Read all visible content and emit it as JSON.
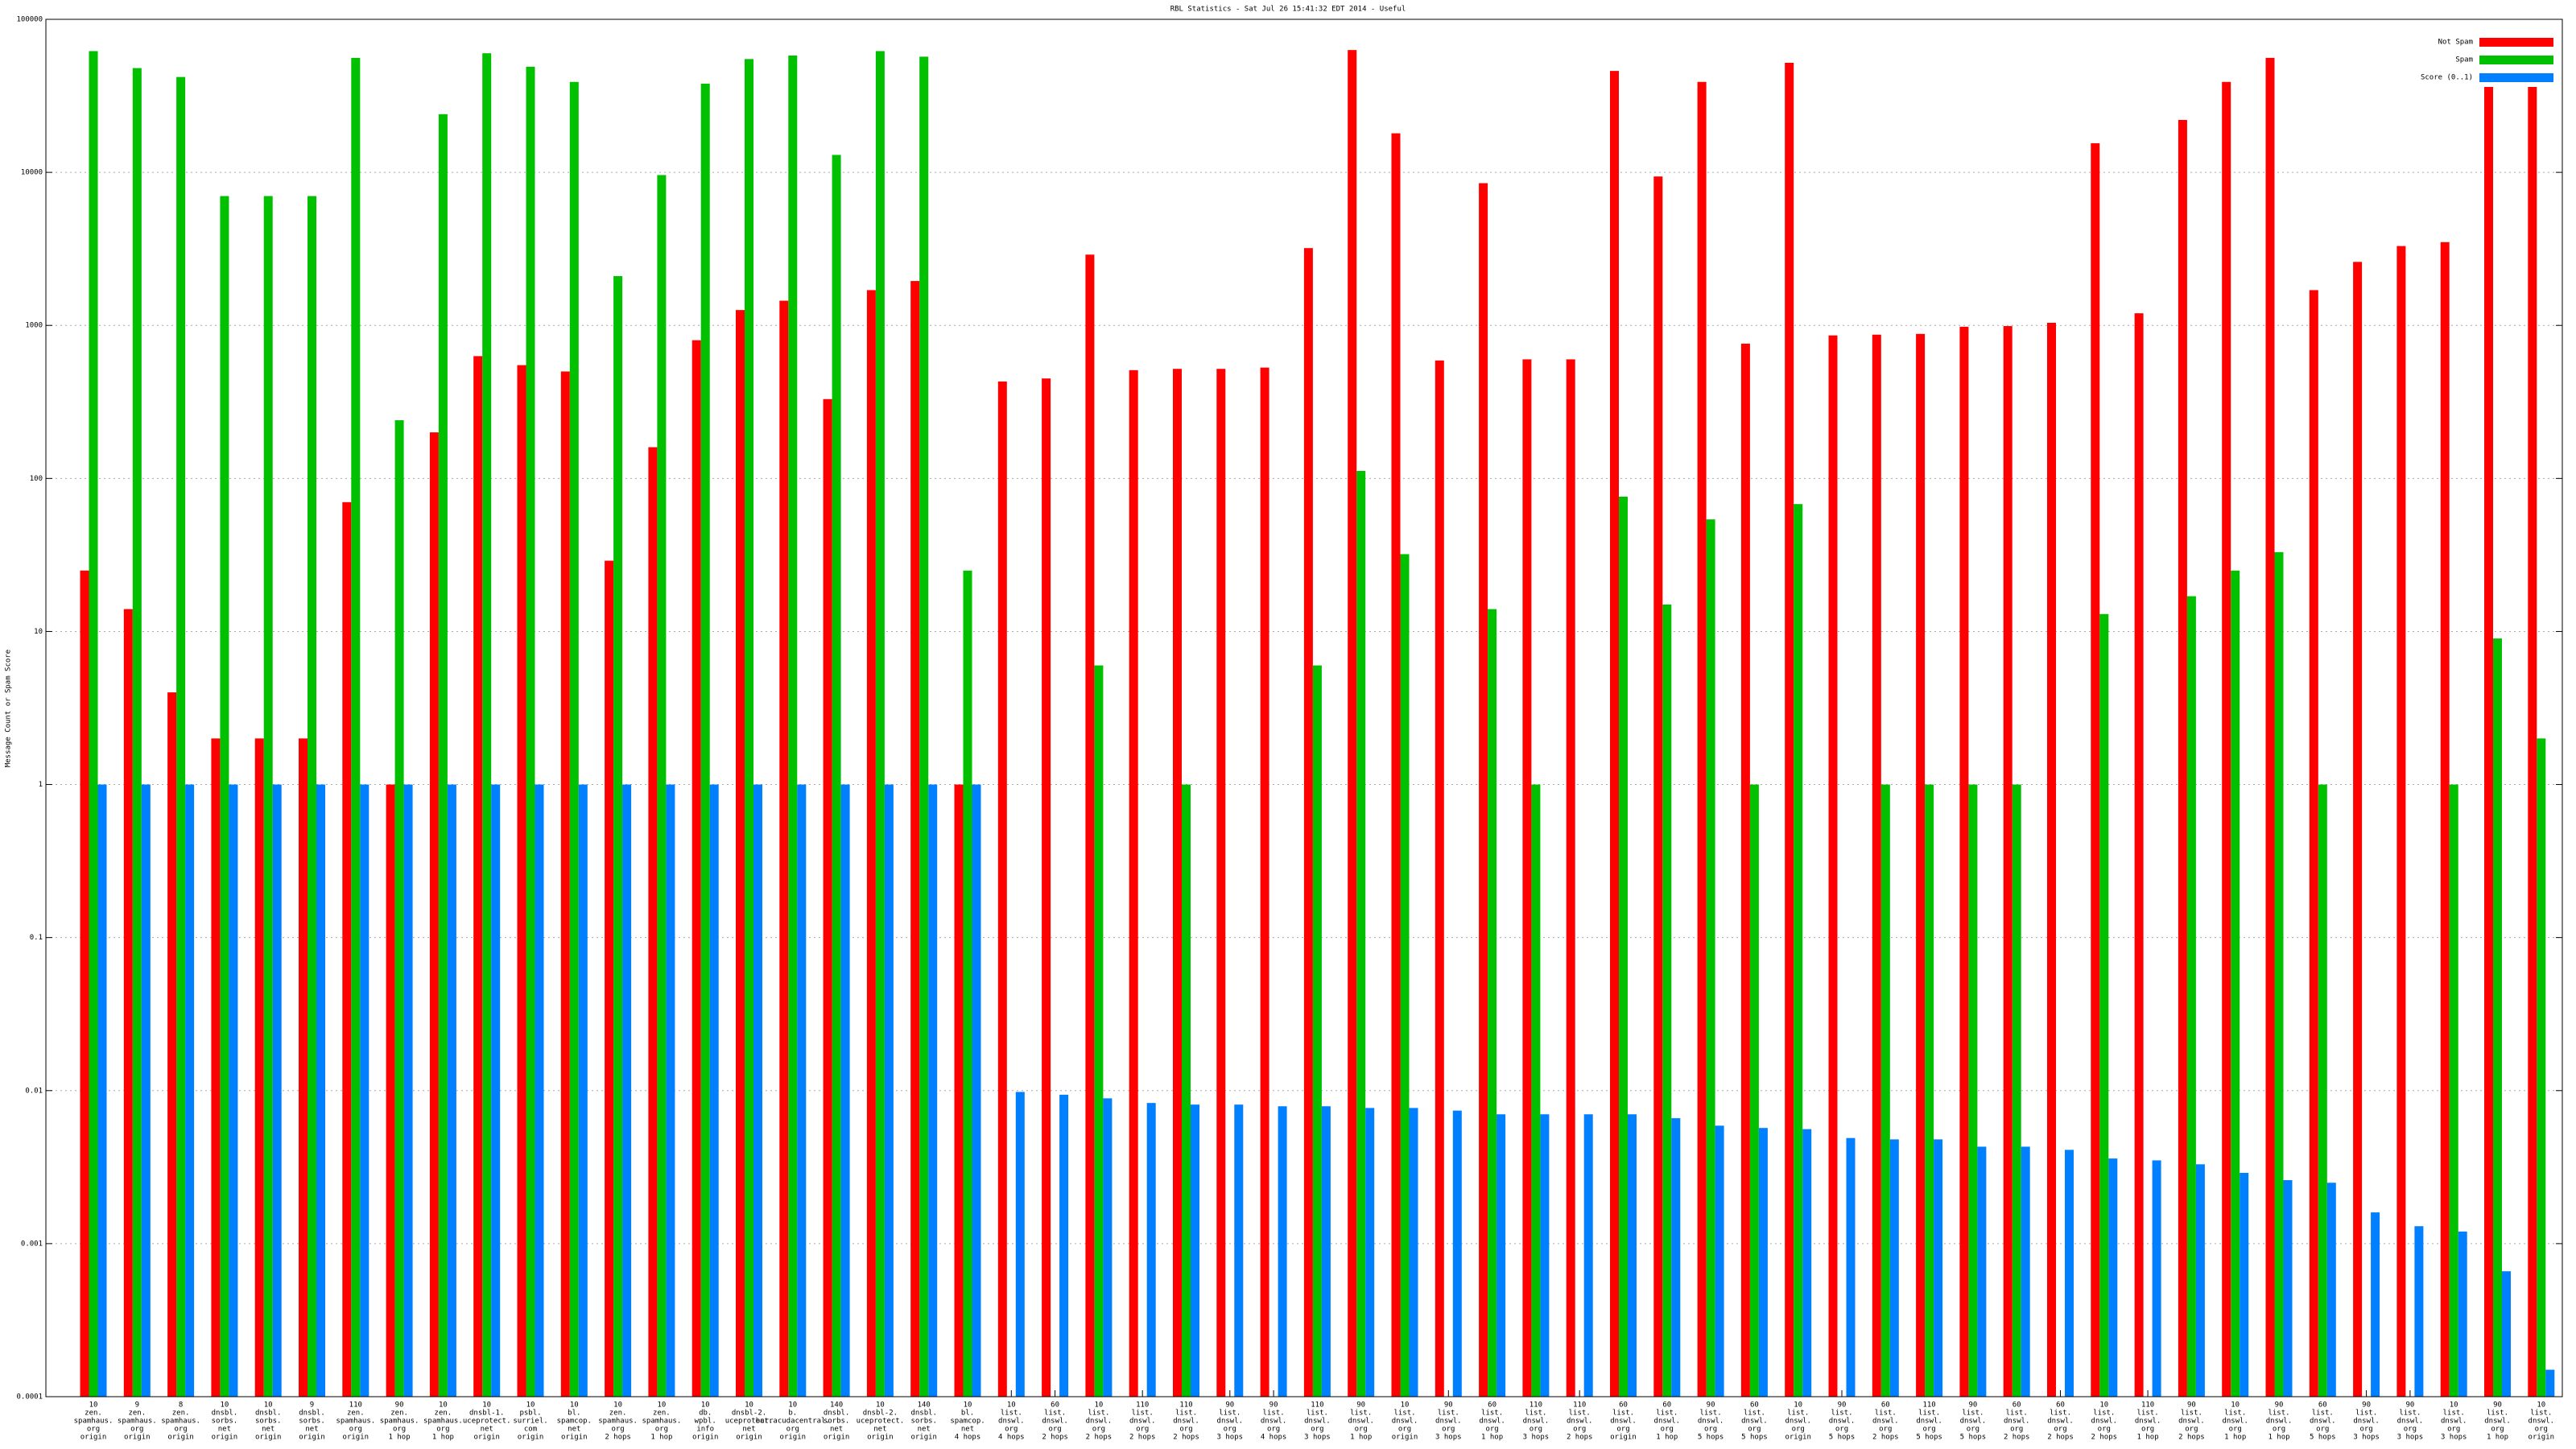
{
  "chart_data": {
    "type": "bar",
    "title": "RBL Statistics - Sat Jul 26 15:41:32 EDT 2014 - Useful",
    "ylabel": "Message Count or Spam Score",
    "log_y": true,
    "grid": true,
    "legend": "upper right",
    "ylim": [
      0.0001,
      100000
    ],
    "yticks": [
      0.0001,
      0.001,
      0.01,
      0.1,
      1,
      10,
      100,
      1000,
      10000,
      100000
    ],
    "categories": [
      [
        "10",
        "zen.",
        "spamhaus.",
        "org",
        "origin"
      ],
      [
        "9",
        "zen.",
        "spamhaus.",
        "org",
        "origin"
      ],
      [
        "8",
        "zen.",
        "spamhaus.",
        "org",
        "origin"
      ],
      [
        "10",
        "dnsbl.",
        "sorbs.",
        "net",
        "origin"
      ],
      [
        "10",
        "dnsbl.",
        "sorbs.",
        "net",
        "origin"
      ],
      [
        "9",
        "dnsbl.",
        "sorbs.",
        "net",
        "origin"
      ],
      [
        "110",
        "zen.",
        "spamhaus.",
        "org",
        "origin"
      ],
      [
        "90",
        "zen.",
        "spamhaus.",
        "org",
        "1 hop"
      ],
      [
        "10",
        "zen.",
        "spamhaus.",
        "org",
        "1 hop"
      ],
      [
        "10",
        "dnsbl-1.",
        "uceprotect.",
        "net",
        "origin"
      ],
      [
        "10",
        "psbl.",
        "surriel.",
        "com",
        "origin"
      ],
      [
        "10",
        "bl.",
        "spamcop.",
        "net",
        "origin"
      ],
      [
        "10",
        "zen.",
        "spamhaus.",
        "org",
        "2 hops"
      ],
      [
        "10",
        "zen.",
        "spamhaus.",
        "org",
        "1 hop"
      ],
      [
        "10",
        "db.",
        "wpbl.",
        "info",
        "origin"
      ],
      [
        "10",
        "dnsbl-2.",
        "uceprotect.",
        "net",
        "origin"
      ],
      [
        "10",
        "b.",
        "barracudacentral.",
        "org",
        "origin"
      ],
      [
        "140",
        "dnsbl.",
        "sorbs.",
        "net",
        "origin"
      ],
      [
        "10",
        "dnsbl-2.",
        "uceprotect.",
        "net",
        "origin"
      ],
      [
        "140",
        "dnsbl.",
        "sorbs.",
        "net",
        "origin"
      ],
      [
        "10",
        "bl.",
        "spamcop.",
        "net",
        "4 hops"
      ],
      [
        "10",
        "list.",
        "dnswl.",
        "org",
        "4 hops"
      ],
      [
        "60",
        "list.",
        "dnswl.",
        "org",
        "2 hops"
      ],
      [
        "10",
        "list.",
        "dnswl.",
        "org",
        "2 hops"
      ],
      [
        "110",
        "list.",
        "dnswl.",
        "org",
        "2 hops"
      ],
      [
        "110",
        "list.",
        "dnswl.",
        "org",
        "2 hops"
      ],
      [
        "90",
        "list.",
        "dnswl.",
        "org",
        "3 hops"
      ],
      [
        "90",
        "list.",
        "dnswl.",
        "org",
        "4 hops"
      ],
      [
        "110",
        "list.",
        "dnswl.",
        "org",
        "3 hops"
      ],
      [
        "90",
        "list.",
        "dnswl.",
        "org",
        "1 hop"
      ],
      [
        "10",
        "list.",
        "dnswl.",
        "org",
        "origin"
      ],
      [
        "90",
        "list.",
        "dnswl.",
        "org",
        "3 hops"
      ],
      [
        "60",
        "list.",
        "dnswl.",
        "org",
        "1 hop"
      ],
      [
        "110",
        "list.",
        "dnswl.",
        "org",
        "3 hops"
      ],
      [
        "110",
        "list.",
        "dnswl.",
        "org",
        "2 hops"
      ],
      [
        "60",
        "list.",
        "dnswl.",
        "org",
        "origin"
      ],
      [
        "60",
        "list.",
        "dnswl.",
        "org",
        "1 hop"
      ],
      [
        "90",
        "list.",
        "dnswl.",
        "org",
        "5 hops"
      ],
      [
        "60",
        "list.",
        "dnswl.",
        "org",
        "5 hops"
      ],
      [
        "10",
        "list.",
        "dnswl.",
        "org",
        "origin"
      ],
      [
        "90",
        "list.",
        "dnswl.",
        "org",
        "5 hops"
      ],
      [
        "60",
        "list.",
        "dnswl.",
        "org",
        "2 hops"
      ],
      [
        "110",
        "list.",
        "dnswl.",
        "org",
        "5 hops"
      ],
      [
        "90",
        "list.",
        "dnswl.",
        "org",
        "5 hops"
      ],
      [
        "60",
        "list.",
        "dnswl.",
        "org",
        "2 hops"
      ],
      [
        "60",
        "list.",
        "dnswl.",
        "org",
        "2 hops"
      ],
      [
        "10",
        "list.",
        "dnswl.",
        "org",
        "2 hops"
      ],
      [
        "110",
        "list.",
        "dnswl.",
        "org",
        "1 hop"
      ],
      [
        "90",
        "list.",
        "dnswl.",
        "org",
        "2 hops"
      ],
      [
        "10",
        "list.",
        "dnswl.",
        "org",
        "1 hop"
      ],
      [
        "90",
        "list.",
        "dnswl.",
        "org",
        "1 hop"
      ],
      [
        "60",
        "list.",
        "dnswl.",
        "org",
        "5 hops"
      ],
      [
        "90",
        "list.",
        "dnswl.",
        "org",
        "3 hops"
      ],
      [
        "90",
        "list.",
        "dnswl.",
        "org",
        "3 hops"
      ],
      [
        "10",
        "list.",
        "dnswl.",
        "org",
        "3 hops"
      ],
      [
        "90",
        "list.",
        "dnswl.",
        "org",
        "1 hop"
      ],
      [
        "10",
        "list.",
        "dnswl.",
        "org",
        "origin"
      ]
    ],
    "series": [
      {
        "name": "Not Spam",
        "color": "#ff0000",
        "values": [
          25,
          14,
          4,
          2,
          2,
          2,
          70,
          1,
          200,
          630,
          550,
          500,
          29,
          160,
          800,
          1260,
          1450,
          330,
          1700,
          1950,
          1,
          430,
          450,
          2900,
          510,
          520,
          520,
          530,
          3200,
          63000,
          18000,
          590,
          8500,
          600,
          600,
          46000,
          9400,
          39000,
          760,
          52000,
          860,
          870,
          880,
          980,
          990,
          1040,
          15500,
          1200,
          22000,
          39000,
          56000,
          1700,
          2600,
          3300,
          3500,
          60000,
          60000
        ]
      },
      {
        "name": "Spam",
        "color": "#00c000",
        "values": [
          62000,
          48000,
          42000,
          7000,
          7000,
          7000,
          56000,
          240,
          24000,
          60000,
          49000,
          39000,
          2100,
          9600,
          38000,
          55000,
          58000,
          13000,
          62000,
          57000,
          25,
          null,
          null,
          6,
          null,
          1,
          null,
          null,
          6,
          112,
          32,
          null,
          14,
          1,
          null,
          76,
          15,
          54,
          1,
          68,
          null,
          1,
          1,
          1,
          1,
          null,
          13,
          null,
          17,
          25,
          33,
          1,
          null,
          null,
          1,
          9,
          2
        ]
      },
      {
        "name": "Score (0..1)",
        "color": "#0080ff",
        "values": [
          1,
          1,
          1,
          1,
          1,
          1,
          1,
          1,
          1,
          1,
          1,
          1,
          1,
          1,
          1,
          1,
          1,
          1,
          1,
          1,
          1,
          0.0098,
          0.0094,
          0.0089,
          0.0083,
          0.0081,
          0.0081,
          0.0079,
          0.0079,
          0.0077,
          0.0077,
          0.0074,
          0.007,
          0.007,
          0.007,
          0.007,
          0.0066,
          0.0059,
          0.0057,
          0.0056,
          0.0049,
          0.0048,
          0.0048,
          0.0043,
          0.0043,
          0.0041,
          0.0036,
          0.0035,
          0.0033,
          0.0029,
          0.0026,
          0.0025,
          0.0016,
          0.0013,
          0.0012,
          0.00066,
          0.00015
        ]
      }
    ]
  }
}
